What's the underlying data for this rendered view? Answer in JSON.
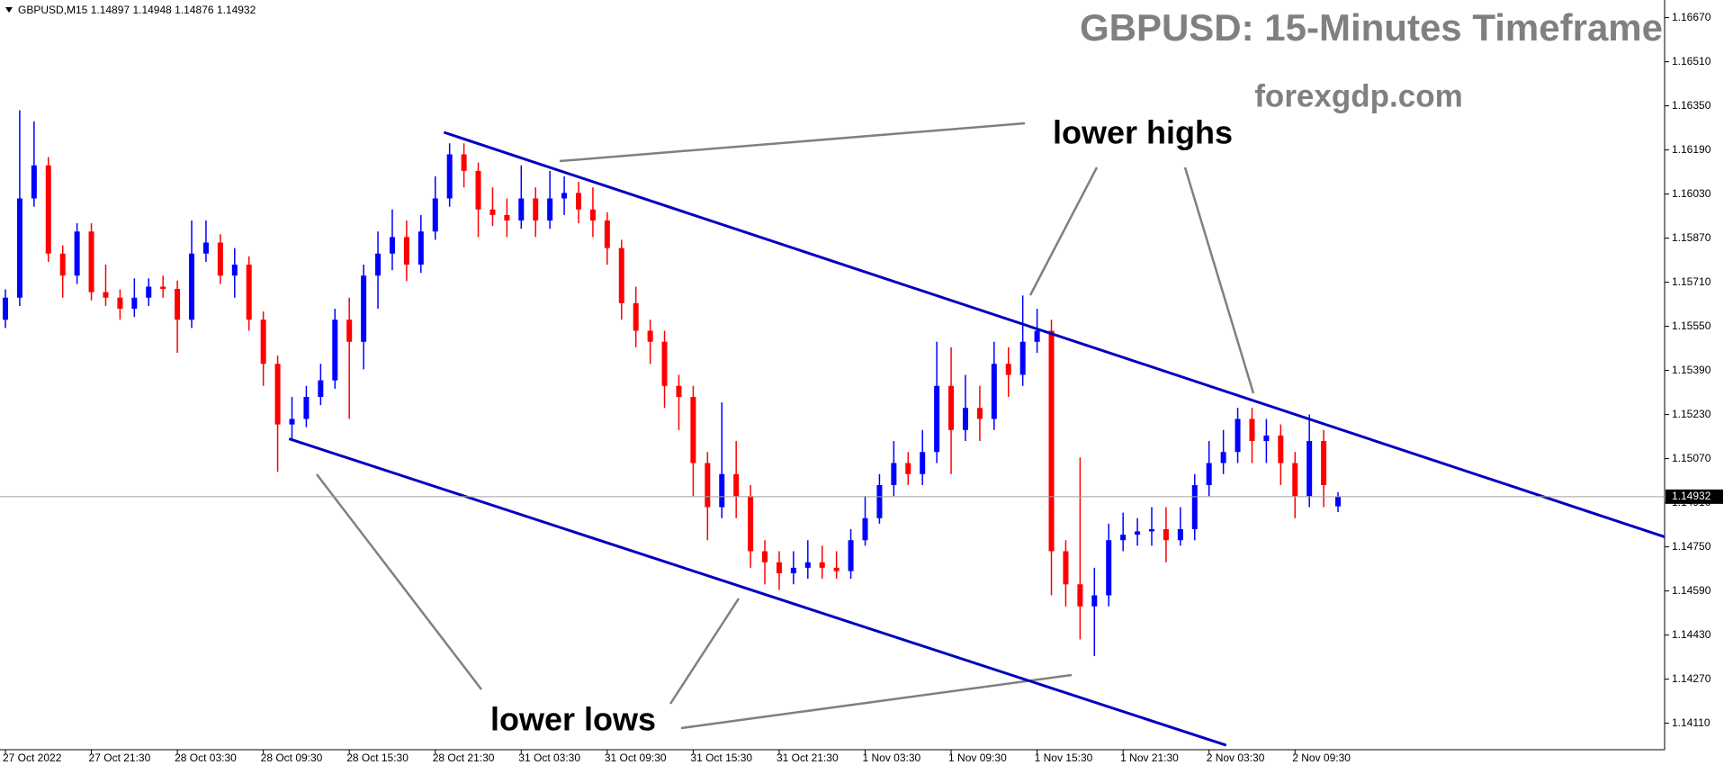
{
  "chart_data": {
    "type": "candlestick",
    "title": "GBPUSD: 15-Minutes Timeframe",
    "subtitle": "forexgdp.com",
    "symbol": "GBPUSD,M15",
    "annotations": [
      "lower highs",
      "lower lows"
    ],
    "up_color": "#0000ff",
    "down_color": "#ff0000",
    "categories": [
      "27 Oct 2022",
      null,
      null,
      null,
      null,
      null,
      "27 Oct 21:30",
      null,
      null,
      null,
      null,
      null,
      "28 Oct 03:30",
      null,
      null,
      null,
      null,
      null,
      "28 Oct 09:30",
      null,
      null,
      null,
      null,
      null,
      "28 Oct 15:30",
      null,
      null,
      null,
      null,
      null,
      "28 Oct 21:30",
      null,
      null,
      null,
      null,
      null,
      "31 Oct 03:30",
      null,
      null,
      null,
      null,
      null,
      "31 Oct 09:30",
      null,
      null,
      null,
      null,
      null,
      "31 Oct 15:30",
      null,
      null,
      null,
      null,
      null,
      "31 Oct 21:30",
      null,
      null,
      null,
      null,
      null,
      "1 Nov 03:30",
      null,
      null,
      null,
      null,
      null,
      "1 Nov 09:30",
      null,
      null,
      null,
      null,
      null,
      "1 Nov 15:30",
      null,
      null,
      null,
      null,
      null,
      "1 Nov 21:30",
      null,
      null,
      null,
      null,
      null,
      "2 Nov 03:30",
      null,
      null,
      null,
      null,
      null,
      "2 Nov 09:30",
      null,
      null,
      null
    ],
    "open": [
      1.15574,
      1.15654,
      1.16014,
      1.16134,
      1.15814,
      1.15734,
      1.15894,
      1.15674,
      1.15654,
      1.15614,
      1.15654,
      1.15694,
      1.15686,
      1.15574,
      1.15814,
      1.15854,
      1.15734,
      1.15774,
      1.15574,
      1.15414,
      1.15194,
      1.15214,
      1.15294,
      1.15354,
      1.15574,
      1.15494,
      1.15734,
      1.15814,
      1.15874,
      1.15774,
      1.15894,
      1.16014,
      1.16174,
      1.16114,
      1.15974,
      1.15954,
      1.15934,
      1.16014,
      1.15934,
      1.16014,
      1.16034,
      1.15974,
      1.15934,
      1.15834,
      1.15634,
      1.15534,
      1.15494,
      1.15334,
      1.15294,
      1.15054,
      1.14894,
      1.15014,
      1.14934,
      1.14734,
      1.14694,
      1.14654,
      1.14674,
      1.14694,
      1.14674,
      1.14662,
      1.14774,
      1.14854,
      1.14974,
      1.15054,
      1.15014,
      1.15094,
      1.15334,
      1.15174,
      1.15254,
      1.15214,
      1.15414,
      1.15374,
      1.15494,
      1.15534,
      1.14734,
      1.14614,
      1.14534,
      1.14574,
      1.14774,
      1.14794,
      1.14806,
      1.14814,
      1.14774,
      1.14814,
      1.14974,
      1.15054,
      1.15094,
      1.15214,
      1.15134,
      1.15154,
      1.15054,
      1.14934,
      1.15134,
      1.14897
    ],
    "high": [
      1.15684,
      1.16334,
      1.16294,
      1.16164,
      1.15844,
      1.15924,
      1.15924,
      1.15774,
      1.15684,
      1.15724,
      1.15724,
      1.15734,
      1.15716,
      1.15934,
      1.15934,
      1.15884,
      1.15834,
      1.15804,
      1.15604,
      1.15444,
      1.15294,
      1.15334,
      1.15414,
      1.15614,
      1.15654,
      1.15774,
      1.15894,
      1.15974,
      1.15934,
      1.15954,
      1.16094,
      1.16214,
      1.16214,
      1.16144,
      1.16054,
      1.16014,
      1.16134,
      1.16054,
      1.16114,
      1.16094,
      1.16074,
      1.16054,
      1.15964,
      1.15864,
      1.15694,
      1.15574,
      1.15534,
      1.15374,
      1.15334,
      1.15094,
      1.15274,
      1.15134,
      1.14974,
      1.14774,
      1.14734,
      1.14734,
      1.14774,
      1.14754,
      1.14734,
      1.14814,
      1.14934,
      1.15014,
      1.15134,
      1.15094,
      1.15174,
      1.15494,
      1.15474,
      1.15374,
      1.15334,
      1.15494,
      1.15474,
      1.15662,
      1.15614,
      1.15574,
      1.14774,
      1.15074,
      1.14674,
      1.14834,
      1.14874,
      1.14854,
      1.14894,
      1.14894,
      1.14894,
      1.15014,
      1.15134,
      1.15174,
      1.15254,
      1.15254,
      1.15214,
      1.15194,
      1.15094,
      1.1523,
      1.15174,
      1.14948
    ],
    "low": [
      1.15544,
      1.15624,
      1.15984,
      1.15784,
      1.15654,
      1.15704,
      1.15644,
      1.15624,
      1.15574,
      1.15584,
      1.15624,
      1.15654,
      1.15454,
      1.15544,
      1.15784,
      1.15704,
      1.15654,
      1.15534,
      1.15334,
      1.15022,
      1.15134,
      1.15184,
      1.15264,
      1.15324,
      1.15214,
      1.15394,
      1.15614,
      1.15754,
      1.15714,
      1.15744,
      1.15864,
      1.15984,
      1.16054,
      1.15874,
      1.15914,
      1.15874,
      1.15904,
      1.15874,
      1.15904,
      1.15954,
      1.15924,
      1.15874,
      1.15774,
      1.15574,
      1.15474,
      1.15414,
      1.15254,
      1.15174,
      1.14934,
      1.14774,
      1.14854,
      1.14854,
      1.14674,
      1.14614,
      1.14594,
      1.14614,
      1.14634,
      1.14634,
      1.14634,
      1.14634,
      1.14754,
      1.14834,
      1.14934,
      1.14974,
      1.14974,
      1.15054,
      1.15014,
      1.15134,
      1.15134,
      1.15174,
      1.15294,
      1.15334,
      1.15454,
      1.14574,
      1.14534,
      1.14414,
      1.14354,
      1.14534,
      1.14734,
      1.14754,
      1.14754,
      1.14694,
      1.14754,
      1.14774,
      1.14934,
      1.15014,
      1.15054,
      1.15054,
      1.15054,
      1.14974,
      1.14854,
      1.14894,
      1.14894,
      1.14876
    ],
    "close": [
      1.15654,
      1.16014,
      1.16134,
      1.15814,
      1.15734,
      1.15894,
      1.15674,
      1.15654,
      1.15614,
      1.15654,
      1.15694,
      1.15686,
      1.15574,
      1.15814,
      1.15854,
      1.15734,
      1.15774,
      1.15574,
      1.15414,
      1.15194,
      1.15214,
      1.15294,
      1.15354,
      1.15574,
      1.15494,
      1.15734,
      1.15814,
      1.15874,
      1.15774,
      1.15894,
      1.16014,
      1.16174,
      1.16114,
      1.15974,
      1.15954,
      1.15934,
      1.16014,
      1.15934,
      1.16014,
      1.16034,
      1.15974,
      1.15934,
      1.15834,
      1.15634,
      1.15534,
      1.15494,
      1.15334,
      1.15294,
      1.15054,
      1.14894,
      1.15014,
      1.14934,
      1.14734,
      1.14694,
      1.14654,
      1.14674,
      1.14694,
      1.14674,
      1.14662,
      1.14774,
      1.14854,
      1.14974,
      1.15054,
      1.15014,
      1.15094,
      1.15334,
      1.15174,
      1.15254,
      1.15214,
      1.15414,
      1.15374,
      1.15494,
      1.15534,
      1.14734,
      1.14614,
      1.14534,
      1.14574,
      1.14774,
      1.14794,
      1.14806,
      1.14814,
      1.14774,
      1.14814,
      1.14974,
      1.15054,
      1.15094,
      1.15214,
      1.15134,
      1.15154,
      1.15054,
      1.14934,
      1.15134,
      1.14974,
      1.14932
    ],
    "trendlines": [
      {
        "color": "#0000c0",
        "x": [
          30.6,
          115.8
        ],
        "y": [
          1.16254,
          1.14786
        ]
      },
      {
        "color": "#0000c0",
        "x": [
          19.8,
          85.2
        ],
        "y": [
          1.15142,
          1.1403
        ]
      }
    ],
    "ylim": [
      1.14014,
      1.16734
    ],
    "yticks": [
      {
        "value": 1.1667,
        "label": "1.16670"
      },
      {
        "value": 1.1651,
        "label": "1.16510"
      },
      {
        "value": 1.1635,
        "label": "1.16350"
      },
      {
        "value": 1.1619,
        "label": "1.16190"
      },
      {
        "value": 1.1603,
        "label": "1.16030"
      },
      {
        "value": 1.1587,
        "label": "1.15870"
      },
      {
        "value": 1.1571,
        "label": "1.15710"
      },
      {
        "value": 1.1555,
        "label": "1.15550"
      },
      {
        "value": 1.1539,
        "label": "1.15390"
      },
      {
        "value": 1.1523,
        "label": "1.15230"
      },
      {
        "value": 1.1507,
        "label": "1.15070"
      },
      {
        "value": 1.1491,
        "label": "1.14910"
      },
      {
        "value": 1.1475,
        "label": "1.14750"
      },
      {
        "value": 1.1459,
        "label": "1.14590"
      },
      {
        "value": 1.1443,
        "label": "1.14430"
      },
      {
        "value": 1.1427,
        "label": "1.14270"
      },
      {
        "value": 1.1411,
        "label": "1.14110"
      }
    ]
  }
}
